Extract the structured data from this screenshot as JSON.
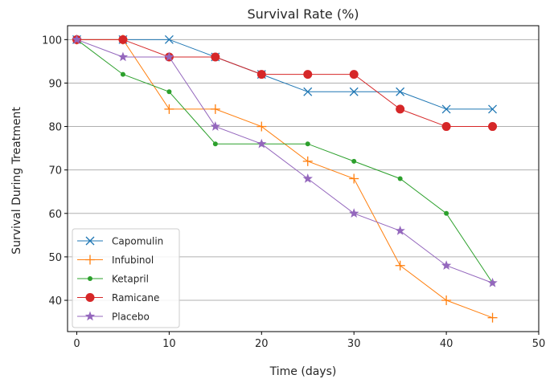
{
  "chart_data": {
    "type": "line",
    "title": "Survival Rate (%)",
    "xlabel": "Time (days)",
    "ylabel": "Survival During Treatment",
    "xlim": [
      -1,
      50
    ],
    "ylim": [
      32.8,
      103.2
    ],
    "x_ticks": [
      0,
      10,
      20,
      30,
      40,
      50
    ],
    "y_ticks": [
      40,
      50,
      60,
      70,
      80,
      90,
      100
    ],
    "grid": "horizontal",
    "legend_position": "lower-left",
    "x": [
      0,
      5,
      10,
      15,
      20,
      25,
      30,
      35,
      40,
      45
    ],
    "series": [
      {
        "name": "Capomulin",
        "color": "#1f77b4",
        "marker": "x",
        "values": [
          100,
          100,
          100,
          96,
          92,
          88,
          88,
          88,
          84,
          84
        ]
      },
      {
        "name": "Infubinol",
        "color": "#ff7f0e",
        "marker": "+",
        "values": [
          100,
          100,
          84,
          84,
          80,
          72,
          68,
          48,
          40,
          36
        ]
      },
      {
        "name": "Ketapril",
        "color": "#2ca02c",
        "marker": ".",
        "values": [
          100,
          92,
          88,
          76,
          76,
          76,
          72,
          68,
          60,
          44
        ]
      },
      {
        "name": "Ramicane",
        "color": "#d62728",
        "marker": "o",
        "values": [
          100,
          100,
          96,
          96,
          92,
          92,
          92,
          84,
          80,
          80
        ]
      },
      {
        "name": "Placebo",
        "color": "#9467bd",
        "marker": "*",
        "values": [
          100,
          96,
          96,
          80,
          76,
          68,
          60,
          56,
          48,
          44
        ]
      }
    ]
  }
}
